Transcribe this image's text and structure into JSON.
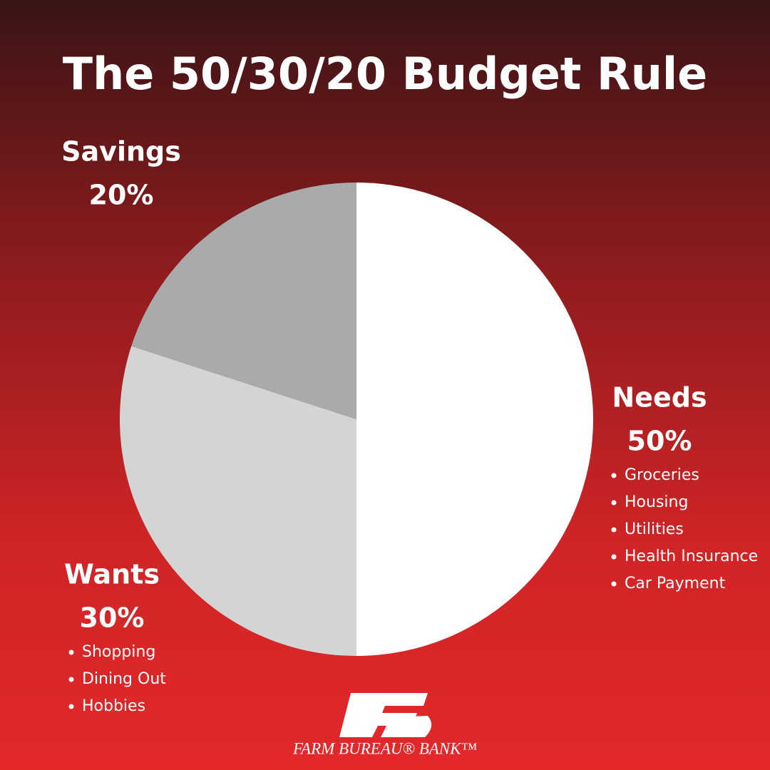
{
  "chart_data": {
    "type": "pie",
    "title": "The 50/30/20 Budget Rule",
    "categories": [
      "Needs",
      "Wants",
      "Savings"
    ],
    "values": [
      50,
      30,
      20
    ],
    "value_labels": [
      "50%",
      "30%",
      "20%"
    ],
    "colors": [
      "#ffffff",
      "#d4d4d4",
      "#aaaaaa"
    ],
    "details": [
      [
        "Groceries",
        "Housing",
        "Utilities",
        "Health Insurance",
        "Car Payment"
      ],
      [
        "Shopping",
        "Dining Out",
        "Hobbies"
      ],
      []
    ]
  },
  "brand": "FARM BUREAU® BANK™"
}
